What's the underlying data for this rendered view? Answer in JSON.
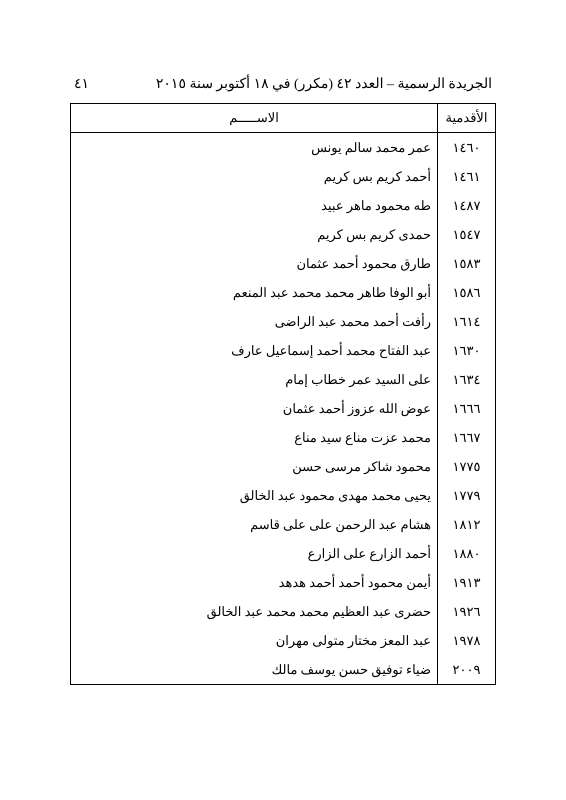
{
  "header": {
    "title": "الجريدة الرسمية – العدد ٤٢ (مكرر) في ١٨ أكتوبر سنة ٢٠١٥",
    "page_number": "٤١"
  },
  "table": {
    "columns": {
      "seniority": "الأقدمية",
      "name": "الاســـــم"
    },
    "rows": [
      {
        "seniority": "١٤٦٠",
        "name": "عمر محمد سالم يونس"
      },
      {
        "seniority": "١٤٦١",
        "name": "أحمد كريم بس كريم"
      },
      {
        "seniority": "١٤٨٧",
        "name": "طه محمود ماهر عبيد"
      },
      {
        "seniority": "١٥٤٧",
        "name": "حمدى كريم بس كريم"
      },
      {
        "seniority": "١٥٨٣",
        "name": "طارق محمود أحمد عثمان"
      },
      {
        "seniority": "١٥٨٦",
        "name": "أبو الوفا طاهر محمد محمد عبد المنعم"
      },
      {
        "seniority": "١٦١٤",
        "name": "رأفت أحمد محمد عبد الراضى"
      },
      {
        "seniority": "١٦٣٠",
        "name": "عبد الفتاح محمد أحمد إسماعيل عارف"
      },
      {
        "seniority": "١٦٣٤",
        "name": "على السيد عمر خطاب إمام"
      },
      {
        "seniority": "١٦٦٦",
        "name": "عوض الله عزوز أحمد عثمان"
      },
      {
        "seniority": "١٦٦٧",
        "name": "محمد عزت مناع سيد مناع"
      },
      {
        "seniority": "١٧٧٥",
        "name": "محمود شاكر مرسى حسن"
      },
      {
        "seniority": "١٧٧٩",
        "name": "يحيى محمد مهدى محمود عبد الخالق"
      },
      {
        "seniority": "١٨١٢",
        "name": "هشام عبد الرحمن على على قاسم"
      },
      {
        "seniority": "١٨٨٠",
        "name": "أحمد الزارع على الزارع"
      },
      {
        "seniority": "١٩١٣",
        "name": "أيمن محمود أحمد أحمد هدهد"
      },
      {
        "seniority": "١٩٢٦",
        "name": "حضرى عبد العظيم محمد محمد عبد الخالق"
      },
      {
        "seniority": "١٩٧٨",
        "name": "عبد المعز مختار متولى مهران"
      },
      {
        "seniority": "٢٠٠٩",
        "name": "ضياء توفيق حسن يوسف مالك"
      }
    ]
  }
}
